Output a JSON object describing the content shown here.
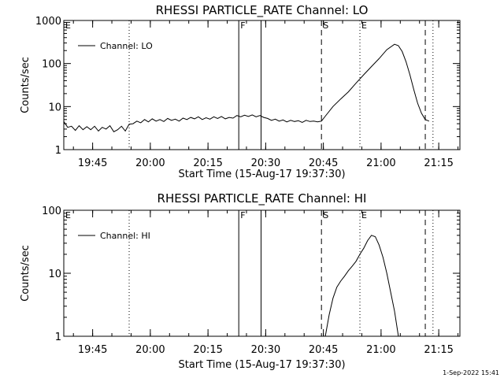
{
  "footer_text": "1-Sep-2022 15:41",
  "chart_data": [
    {
      "type": "line",
      "title": "RHESSI PARTICLE_RATE Channel: LO",
      "xlabel": "Start Time (15-Aug-17 19:37:30)",
      "ylabel": "Counts/sec",
      "yscale": "log",
      "ylim": [
        1,
        1000
      ],
      "y_tick_labels": [
        "1",
        "10",
        "100",
        "1000"
      ],
      "x_tick_labels": [
        "19:45",
        "20:00",
        "20:15",
        "20:30",
        "20:45",
        "21:00",
        "21:15"
      ],
      "xlim_minutes": [
        0,
        103
      ],
      "x_tick_minutes": [
        7.5,
        22.5,
        37.5,
        52.5,
        67.5,
        82.5,
        97.5
      ],
      "legend": {
        "label": "Channel: LO",
        "placement": "top-left"
      },
      "markers": [
        {
          "label": "E",
          "minute": 0,
          "style": "none"
        },
        {
          "label": "",
          "minute": 17,
          "style": "dotted"
        },
        {
          "label": "F",
          "minute": 45.5,
          "style": "solid"
        },
        {
          "label": "",
          "minute": 51.3,
          "style": "solid"
        },
        {
          "label": "S",
          "minute": 67,
          "style": "dashed"
        },
        {
          "label": "E",
          "minute": 77,
          "style": "dotted"
        },
        {
          "label": "",
          "minute": 94,
          "style": "dashed"
        },
        {
          "label": "",
          "minute": 96,
          "style": "dotted"
        }
      ],
      "series": [
        {
          "name": "Channel: LO",
          "x_minutes": [
            0,
            1,
            2,
            3,
            4,
            5,
            6,
            7,
            8,
            9,
            10,
            11,
            12,
            13,
            14,
            15,
            16,
            17,
            18,
            19,
            20,
            21,
            22,
            23,
            24,
            25,
            26,
            27,
            28,
            29,
            30,
            31,
            32,
            33,
            34,
            35,
            36,
            37,
            38,
            39,
            40,
            41,
            42,
            43,
            44,
            45,
            46,
            47,
            48,
            49,
            50,
            51,
            52,
            53,
            54,
            55,
            56,
            57,
            58,
            59,
            60,
            61,
            62,
            63,
            64,
            65,
            66,
            67,
            68,
            70,
            72,
            74,
            76,
            78,
            80,
            82,
            84,
            86,
            87,
            88,
            89,
            90,
            91,
            92,
            93,
            94,
            95
          ],
          "y": [
            4.5,
            3.3,
            3.5,
            2.8,
            3.6,
            2.9,
            3.4,
            2.9,
            3.5,
            2.7,
            3.3,
            3.0,
            3.6,
            2.6,
            2.9,
            3.5,
            2.7,
            3.9,
            4.0,
            4.6,
            4.2,
            5.0,
            4.4,
            5.2,
            4.6,
            5.0,
            4.5,
            5.3,
            4.8,
            5.1,
            4.6,
            5.4,
            5.0,
            5.6,
            5.2,
            5.8,
            5.0,
            5.5,
            5.1,
            5.8,
            5.3,
            5.9,
            5.2,
            5.6,
            5.4,
            6.2,
            5.8,
            6.3,
            5.9,
            6.4,
            5.8,
            6.2,
            5.6,
            5.3,
            4.8,
            5.1,
            4.6,
            4.9,
            4.4,
            4.8,
            4.5,
            4.7,
            4.3,
            4.8,
            4.5,
            4.6,
            4.4,
            4.6,
            6.0,
            10.0,
            15.0,
            22.0,
            35.0,
            55.0,
            85.0,
            130.0,
            210.0,
            280.0,
            260.0,
            190.0,
            110.0,
            55.0,
            25.0,
            12.0,
            7.0,
            5.0,
            4.6
          ]
        }
      ]
    },
    {
      "type": "line",
      "title": "RHESSI PARTICLE_RATE Channel: HI",
      "xlabel": "Start Time (15-Aug-17 19:37:30)",
      "ylabel": "Counts/sec",
      "yscale": "log",
      "ylim": [
        1,
        100
      ],
      "y_tick_labels": [
        "1",
        "10",
        "100"
      ],
      "x_tick_labels": [
        "19:45",
        "20:00",
        "20:15",
        "20:30",
        "20:45",
        "21:00",
        "21:15"
      ],
      "xlim_minutes": [
        0,
        103
      ],
      "x_tick_minutes": [
        7.5,
        22.5,
        37.5,
        52.5,
        67.5,
        82.5,
        97.5
      ],
      "legend": {
        "label": "Channel: HI",
        "placement": "top-left"
      },
      "markers": [
        {
          "label": "E",
          "minute": 0,
          "style": "none"
        },
        {
          "label": "",
          "minute": 17,
          "style": "dotted"
        },
        {
          "label": "F",
          "minute": 45.5,
          "style": "solid"
        },
        {
          "label": "",
          "minute": 51.3,
          "style": "solid"
        },
        {
          "label": "S",
          "minute": 67,
          "style": "dashed"
        },
        {
          "label": "E",
          "minute": 77,
          "style": "dotted"
        },
        {
          "label": "",
          "minute": 94,
          "style": "dashed"
        },
        {
          "label": "",
          "minute": 96,
          "style": "dotted"
        }
      ],
      "series": [
        {
          "name": "Channel: HI",
          "x_minutes": [
            68,
            69,
            70,
            71,
            72,
            73,
            74,
            75,
            76,
            77,
            78,
            79,
            80,
            81,
            82,
            83,
            84,
            85,
            86,
            87
          ],
          "y": [
            1.0,
            2.2,
            4.0,
            6.0,
            7.5,
            9.0,
            11.0,
            13.0,
            15.5,
            20.0,
            25.0,
            33.0,
            40.0,
            38.0,
            28.0,
            18.0,
            10.0,
            5.0,
            2.5,
            1.0
          ]
        }
      ]
    }
  ]
}
